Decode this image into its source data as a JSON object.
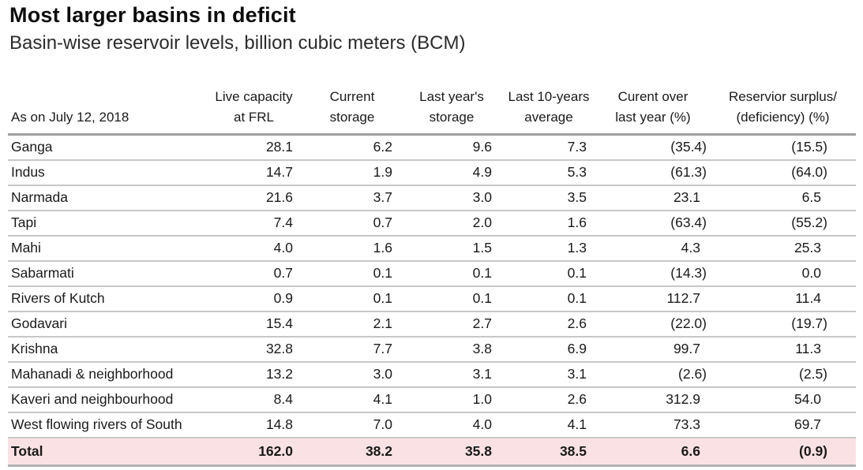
{
  "header": {
    "title": "Most larger basins in deficit",
    "subtitle": "Basin-wise reservoir levels, billion cubic meters (BCM)"
  },
  "table": {
    "corner_label": "As on July 12, 2018",
    "columns": [
      {
        "line1": "Live capacity",
        "line2": "at FRL"
      },
      {
        "line1": "Current",
        "line2": "storage"
      },
      {
        "line1": "Last year's",
        "line2": "storage"
      },
      {
        "line1": "Last 10-years",
        "line2": "average"
      },
      {
        "line1": "Curent over",
        "line2": "last year (%)"
      },
      {
        "line1": "Reservior surplus/",
        "line2": "(deficiency) (%)"
      }
    ],
    "rows": [
      {
        "name": "Ganga",
        "values": [
          "28.1",
          "6.2",
          "9.6",
          "7.3",
          "(35.4)",
          "(15.5)"
        ]
      },
      {
        "name": "Indus",
        "values": [
          "14.7",
          "1.9",
          "4.9",
          "5.3",
          "(61.3)",
          "(64.0)"
        ]
      },
      {
        "name": "Narmada",
        "values": [
          "21.6",
          "3.7",
          "3.0",
          "3.5",
          "23.1",
          "6.5"
        ]
      },
      {
        "name": "Tapi",
        "values": [
          "7.4",
          "0.7",
          "2.0",
          "1.6",
          "(63.4)",
          "(55.2)"
        ]
      },
      {
        "name": "Mahi",
        "values": [
          "4.0",
          "1.6",
          "1.5",
          "1.3",
          "4.3",
          "25.3"
        ]
      },
      {
        "name": "Sabarmati",
        "values": [
          "0.7",
          "0.1",
          "0.1",
          "0.1",
          "(14.3)",
          "0.0"
        ]
      },
      {
        "name": "Rivers of Kutch",
        "values": [
          "0.9",
          "0.1",
          "0.1",
          "0.1",
          "112.7",
          "11.4"
        ]
      },
      {
        "name": "Godavari",
        "values": [
          "15.4",
          "2.1",
          "2.7",
          "2.6",
          "(22.0)",
          "(19.7)"
        ]
      },
      {
        "name": "Krishna",
        "values": [
          "32.8",
          "7.7",
          "3.8",
          "6.9",
          "99.7",
          "11.3"
        ]
      },
      {
        "name": "Mahanadi & neighborhood",
        "values": [
          "13.2",
          "3.0",
          "3.1",
          "3.1",
          "(2.6)",
          "(2.5)"
        ]
      },
      {
        "name": "Kaveri and neighbourhood",
        "values": [
          "8.4",
          "4.1",
          "1.0",
          "2.6",
          "312.9",
          "54.0"
        ]
      },
      {
        "name": "West flowing rivers of South",
        "values": [
          "14.8",
          "7.0",
          "4.0",
          "4.1",
          "73.3",
          "69.7"
        ]
      }
    ],
    "total_row": {
      "name": "Total",
      "values": [
        "162.0",
        "38.2",
        "35.8",
        "38.5",
        "6.6",
        "(0.9)"
      ]
    }
  },
  "chart_data": {
    "type": "table",
    "title": "Most larger basins in deficit",
    "subtitle": "Basin-wise reservoir levels, billion cubic meters (BCM)",
    "as_on": "As on July 12, 2018",
    "unit": "billion cubic meters (BCM)",
    "columns": [
      "Live capacity at FRL",
      "Current storage",
      "Last year's storage",
      "Last 10-years average",
      "Curent over last year (%)",
      "Reservior surplus/(deficiency) (%)"
    ],
    "negative_convention": "values shown in parentheses are negative",
    "rows": [
      {
        "basin": "Ganga",
        "values": [
          28.1,
          6.2,
          9.6,
          7.3,
          -35.4,
          -15.5
        ]
      },
      {
        "basin": "Indus",
        "values": [
          14.7,
          1.9,
          4.9,
          5.3,
          -61.3,
          -64.0
        ]
      },
      {
        "basin": "Narmada",
        "values": [
          21.6,
          3.7,
          3.0,
          3.5,
          23.1,
          6.5
        ]
      },
      {
        "basin": "Tapi",
        "values": [
          7.4,
          0.7,
          2.0,
          1.6,
          -63.4,
          -55.2
        ]
      },
      {
        "basin": "Mahi",
        "values": [
          4.0,
          1.6,
          1.5,
          1.3,
          4.3,
          25.3
        ]
      },
      {
        "basin": "Sabarmati",
        "values": [
          0.7,
          0.1,
          0.1,
          0.1,
          -14.3,
          0.0
        ]
      },
      {
        "basin": "Rivers of Kutch",
        "values": [
          0.9,
          0.1,
          0.1,
          0.1,
          112.7,
          11.4
        ]
      },
      {
        "basin": "Godavari",
        "values": [
          15.4,
          2.1,
          2.7,
          2.6,
          -22.0,
          -19.7
        ]
      },
      {
        "basin": "Krishna",
        "values": [
          32.8,
          7.7,
          3.8,
          6.9,
          99.7,
          11.3
        ]
      },
      {
        "basin": "Mahanadi & neighborhood",
        "values": [
          13.2,
          3.0,
          3.1,
          3.1,
          -2.6,
          -2.5
        ]
      },
      {
        "basin": "Kaveri and neighbourhood",
        "values": [
          8.4,
          4.1,
          1.0,
          2.6,
          312.9,
          54.0
        ]
      },
      {
        "basin": "West flowing rivers of South",
        "values": [
          14.8,
          7.0,
          4.0,
          4.1,
          73.3,
          69.7
        ]
      }
    ],
    "total": {
      "basin": "Total",
      "values": [
        162.0,
        38.2,
        35.8,
        38.5,
        6.6,
        -0.9
      ]
    }
  },
  "colors": {
    "text": "#1a1a1a",
    "total_row_bg": "#fae2e4",
    "rule_dark": "#9e9e9e",
    "rule_light": "#c7c7c7",
    "rule_bottom": "#b3b3b3"
  }
}
